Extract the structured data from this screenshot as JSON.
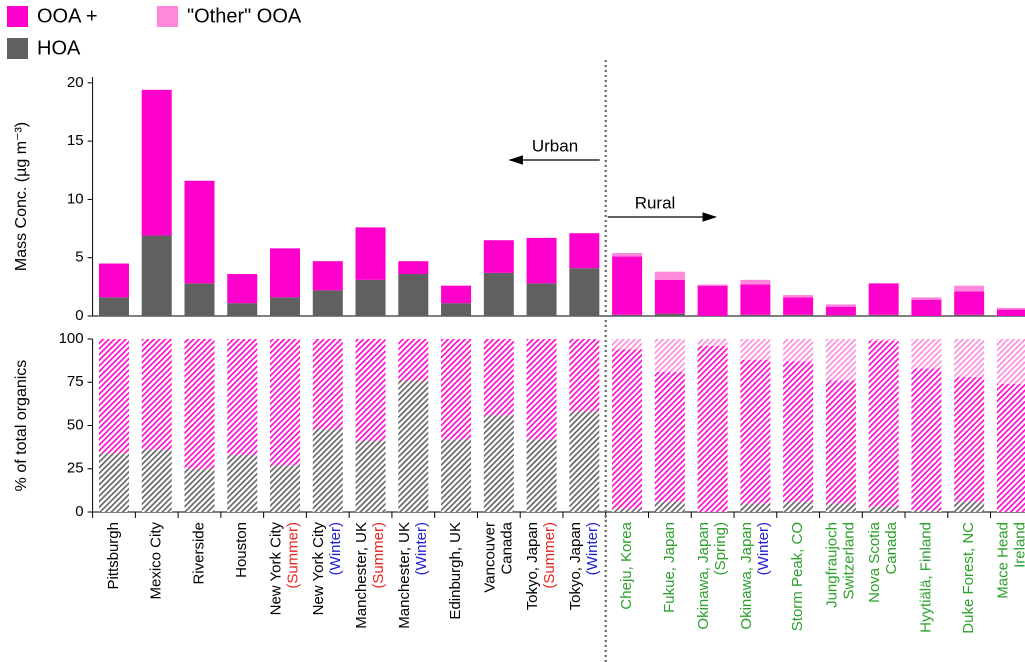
{
  "chart_data": {
    "type": "bar",
    "stacked": true,
    "categories": [
      [
        "Pittsburgh"
      ],
      [
        "Mexico City"
      ],
      [
        "Riverside"
      ],
      [
        "Houston"
      ],
      [
        "New York City",
        "(Summer)"
      ],
      [
        "New York City",
        "(Winter)"
      ],
      [
        "Manchester, UK",
        "(Summer)"
      ],
      [
        "Manchester, UK",
        "(Winter)"
      ],
      [
        "Edinburgh, UK"
      ],
      [
        "Vancouver",
        "Canada"
      ],
      [
        "Tokyo, Japan",
        "(Summer)"
      ],
      [
        "Tokyo, Japan",
        "(Winter)"
      ],
      [
        "Cheju, Korea"
      ],
      [
        "Fukue, Japan"
      ],
      [
        "Okinawa, Japan",
        "(Spring)"
      ],
      [
        "Okinawa, Japan",
        "(Winter)"
      ],
      [
        "Storm Peak, CO"
      ],
      [
        "Jungfraujoch",
        "Switzerland"
      ],
      [
        "Nova Scotia",
        "Canada"
      ],
      [
        "Hyytiälä, Finland"
      ],
      [
        "Duke Forest, NC"
      ],
      [
        "Mace Head",
        "Ireland"
      ]
    ],
    "regions": [
      {
        "name": "Urban",
        "count": 12,
        "label_color": "#000000"
      },
      {
        "name": "Rural",
        "count": 10,
        "label_color": "#2ca02c"
      }
    ],
    "label_highlights": {
      "(Summer)": "#e8231f",
      "(Winter)": "#2020d0"
    },
    "series": [
      {
        "name": "HOA",
        "color": "#606060"
      },
      {
        "name": "OOA +",
        "color": "#ff00cc"
      },
      {
        "name": "\"Other\" OOA",
        "color": "#ff88dd"
      }
    ],
    "panels": [
      {
        "ylabel": "Mass Conc. (µg m⁻³)",
        "ylim": [
          0,
          20.5
        ],
        "yticks": [
          0,
          5,
          10,
          15,
          20
        ],
        "hatched": false,
        "values": [
          [
            1.6,
            6.9,
            2.8,
            1.1,
            1.6,
            2.2,
            3.1,
            3.6,
            1.1,
            3.7,
            2.8,
            4.1,
            0.1,
            0.2,
            0,
            0.1,
            0.1,
            0.05,
            0.1,
            0,
            0.1,
            0
          ],
          [
            2.9,
            12.5,
            8.8,
            2.5,
            4.2,
            2.5,
            4.5,
            1.1,
            1.5,
            2.8,
            3.9,
            3.0,
            5.0,
            2.9,
            2.6,
            2.6,
            1.5,
            0.75,
            2.7,
            1.4,
            2.0,
            0.55
          ],
          [
            0,
            0,
            0,
            0,
            0,
            0,
            0,
            0,
            0,
            0,
            0,
            0,
            0.3,
            0.7,
            0.1,
            0.4,
            0.2,
            0.2,
            0,
            0.2,
            0.5,
            0.15
          ]
        ]
      },
      {
        "ylabel": "% of total organics",
        "ylim": [
          0,
          100
        ],
        "yticks": [
          0,
          25,
          50,
          75,
          100
        ],
        "hatched": true,
        "values": [
          [
            34,
            36,
            25,
            33,
            27,
            48,
            41,
            76,
            42,
            56,
            42,
            58,
            2,
            6,
            0,
            5,
            6,
            5,
            3,
            1,
            6,
            0
          ],
          [
            66,
            64,
            75,
            67,
            73,
            52,
            59,
            24,
            58,
            44,
            58,
            42,
            92,
            75,
            96,
            83,
            81,
            71,
            96,
            82,
            72,
            74
          ],
          [
            0,
            0,
            0,
            0,
            0,
            0,
            0,
            0,
            0,
            0,
            0,
            0,
            6,
            19,
            4,
            12,
            13,
            24,
            1,
            17,
            22,
            26
          ]
        ]
      }
    ]
  }
}
